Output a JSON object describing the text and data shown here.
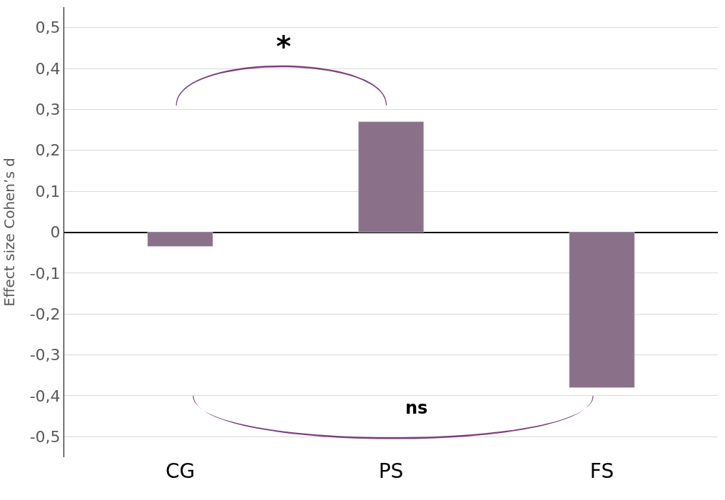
{
  "chart_data": {
    "type": "bar",
    "ylabel": "Effect size Cohen’s d",
    "categories": [
      "CG",
      "PS",
      "FS"
    ],
    "series": [
      {
        "color": "#8a7189",
        "values": [
          -0.035,
          0.27,
          -0.38
        ]
      }
    ],
    "ylim": [
      -0.55,
      0.55
    ],
    "yticks": [
      {
        "value": -0.5,
        "label": "-0,5"
      },
      {
        "value": -0.4,
        "label": "-0,4"
      },
      {
        "value": -0.3,
        "label": "-0,3"
      },
      {
        "value": -0.2,
        "label": "-0,2"
      },
      {
        "value": -0.1,
        "label": "-0,1"
      },
      0,
      {
        "value": 0.1,
        "label": "0,1"
      },
      {
        "value": 0.2,
        "label": "0,2"
      },
      {
        "value": 0.3,
        "label": "0,3"
      },
      {
        "value": 0.4,
        "label": "0,4"
      },
      {
        "value": 0.5,
        "label": "0,5"
      }
    ],
    "grid": "y",
    "annotations": [
      "*",
      "ns"
    ]
  }
}
